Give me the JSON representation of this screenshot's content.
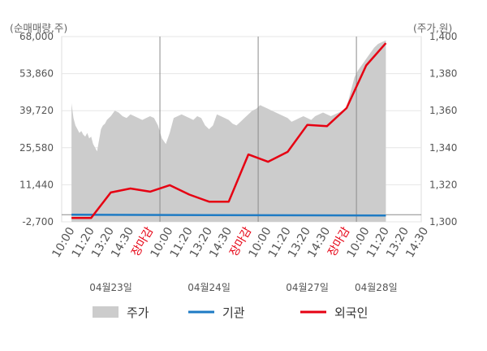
{
  "chart_data": {
    "type": "line",
    "left_axis_label": "(순매매량,주)",
    "right_axis_label": "(주가,원)",
    "left_ticks": [
      "68,000",
      "53,860",
      "39,720",
      "25,580",
      "11,440",
      "-2,700"
    ],
    "left_tick_values": [
      68000,
      53860,
      39720,
      25580,
      11440,
      -2700
    ],
    "right_ticks": [
      "1,400",
      "1,380",
      "1,360",
      "1,340",
      "1,320",
      "1,300"
    ],
    "right_tick_values": [
      1400,
      1380,
      1360,
      1340,
      1320,
      1300
    ],
    "left_ylim": [
      -2700,
      68000
    ],
    "right_ylim": [
      1300,
      1400
    ],
    "x_tick_labels": [
      "10:00",
      "11:20",
      "13:20",
      "14:30",
      "장마감",
      "10:00",
      "11:20",
      "13:20",
      "14:30",
      "장마감",
      "10:00",
      "11:20",
      "13:20",
      "14:30",
      "장마감",
      "10:00",
      "11:20",
      "13:20",
      "14:30"
    ],
    "x_tick_red": [
      false,
      false,
      false,
      false,
      true,
      false,
      false,
      false,
      false,
      true,
      false,
      false,
      false,
      false,
      true,
      false,
      false,
      false,
      false
    ],
    "x_tick_count": 19,
    "dates": [
      "04월23일",
      "04월24일",
      "04월27일",
      "04월28일"
    ],
    "date_tick_index": [
      2,
      7,
      12,
      15.5
    ],
    "day_separators_index": [
      4.5,
      9.5,
      14.5
    ],
    "grid": true,
    "price_area": {
      "name": "주가",
      "x": [
        0,
        0.1,
        0.2,
        0.3,
        0.4,
        0.5,
        0.6,
        0.7,
        0.8,
        0.9,
        1.0,
        1.1,
        1.2,
        1.3,
        1.4,
        1.5,
        1.6,
        1.7,
        1.8,
        1.9,
        2.0,
        2.2,
        2.4,
        2.6,
        2.8,
        3.0,
        3.2,
        3.4,
        3.6,
        3.8,
        4.0,
        4.2,
        4.4,
        4.6,
        4.8,
        5.0,
        5.2,
        5.4,
        5.6,
        5.8,
        6.0,
        6.2,
        6.4,
        6.6,
        6.8,
        7.0,
        7.2,
        7.4,
        7.6,
        7.8,
        8.0,
        8.2,
        8.4,
        8.6,
        8.8,
        9.0,
        9.2,
        9.4,
        9.6,
        9.8,
        10.0,
        10.2,
        10.4,
        10.6,
        10.8,
        11.0,
        11.2,
        11.4,
        11.6,
        11.8,
        12.0,
        12.2,
        12.4,
        12.6,
        12.8,
        13.0,
        13.2,
        13.4,
        13.6,
        13.8,
        14.0,
        14.2,
        14.4,
        14.6,
        14.8,
        15.0,
        15.2,
        15.4,
        15.6,
        15.8,
        16.0
      ],
      "values": [
        1364,
        1356,
        1352,
        1350,
        1348,
        1349,
        1347,
        1346,
        1348,
        1345,
        1346,
        1342,
        1340,
        1338,
        1344,
        1350,
        1352,
        1353,
        1355,
        1356,
        1357,
        1360,
        1359,
        1357,
        1356,
        1358,
        1357,
        1356,
        1355,
        1356,
        1357,
        1356,
        1352,
        1345,
        1342,
        1348,
        1356,
        1357,
        1358,
        1357,
        1356,
        1355,
        1357,
        1356,
        1352,
        1350,
        1352,
        1358,
        1357,
        1356,
        1355,
        1353,
        1352,
        1354,
        1356,
        1358,
        1360,
        1361,
        1363,
        1362,
        1361,
        1360,
        1359,
        1358,
        1357,
        1356,
        1354,
        1355,
        1356,
        1357,
        1356,
        1355,
        1357,
        1358,
        1359,
        1358,
        1357,
        1358,
        1359,
        1360,
        1362,
        1370,
        1378,
        1382,
        1385,
        1388,
        1391,
        1394,
        1396,
        1397,
        1398
      ]
    },
    "series": [
      {
        "name": "기관",
        "color": "#1e7bc4",
        "x": [
          0,
          16
        ],
        "values": [
          0,
          -300
        ]
      },
      {
        "name": "외국인",
        "color": "#e60012",
        "x": [
          0,
          1,
          2,
          3,
          4,
          5,
          6,
          7,
          8,
          9,
          10,
          11,
          12,
          13,
          14,
          15,
          16
        ],
        "values": [
          -1200,
          -1200,
          8500,
          10000,
          8800,
          11300,
          7700,
          5000,
          5000,
          23000,
          20200,
          24000,
          34300,
          33800,
          40700,
          57000,
          65500
        ]
      }
    ],
    "legend": {
      "position": "bottom",
      "items": [
        "주가",
        "기관",
        "외국인"
      ]
    }
  }
}
